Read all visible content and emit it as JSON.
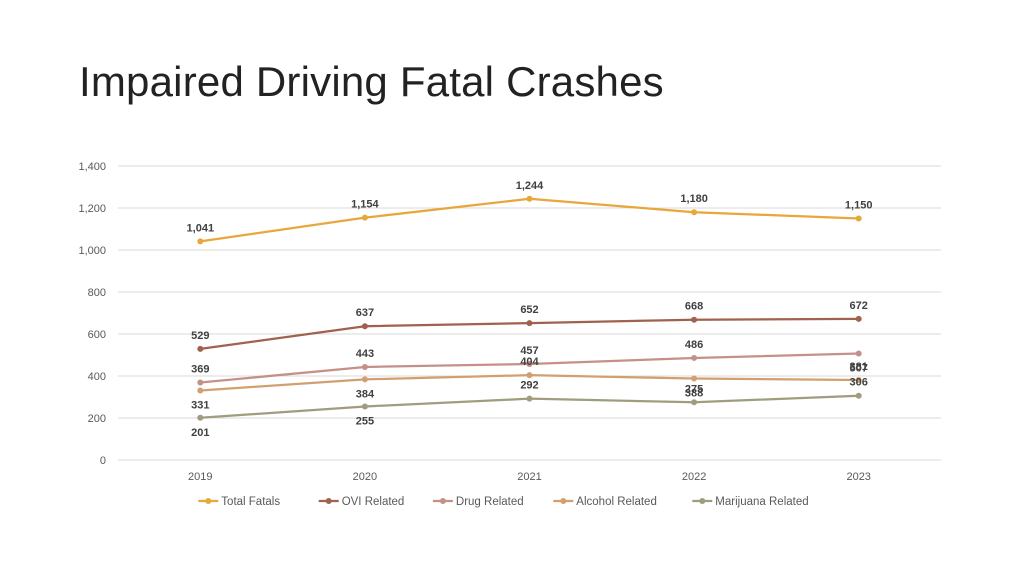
{
  "title": "Impaired Driving Fatal Crashes",
  "chart_data": {
    "type": "line",
    "title": "Impaired Driving Fatal Crashes",
    "x": [
      "2019",
      "2020",
      "2021",
      "2022",
      "2023"
    ],
    "ylim": [
      0,
      1400
    ],
    "yticks": [
      0,
      200,
      400,
      600,
      800,
      1000,
      1200,
      1400
    ],
    "ytick_labels": [
      "0",
      "200",
      "400",
      "600",
      "800",
      "1,000",
      "1,200",
      "1,400"
    ],
    "grid": true,
    "legend_position": "bottom",
    "series": [
      {
        "name": "Total Fatals",
        "color": "#E7A73A",
        "values": [
          1041,
          1154,
          1244,
          1180,
          1150
        ],
        "labels": [
          "1,041",
          "1,154",
          "1,244",
          "1,180",
          "1,150"
        ]
      },
      {
        "name": "OVI Related",
        "color": "#A0614D",
        "values": [
          529,
          637,
          652,
          668,
          672
        ],
        "labels": [
          "529",
          "637",
          "652",
          "668",
          "672"
        ]
      },
      {
        "name": "Drug Related",
        "color": "#C49188",
        "values": [
          369,
          443,
          457,
          486,
          507
        ],
        "labels": [
          "369",
          "443",
          "457",
          "486",
          "507"
        ]
      },
      {
        "name": "Alcohol Related",
        "color": "#D2A070",
        "values": [
          331,
          384,
          404,
          388,
          381
        ],
        "labels": [
          "331",
          "384",
          "404",
          "388",
          "381"
        ]
      },
      {
        "name": "Marijuana Related",
        "color": "#A09C7E",
        "values": [
          201,
          255,
          292,
          275,
          306
        ],
        "labels": [
          "201",
          "255",
          "292",
          "275",
          "306"
        ]
      }
    ]
  }
}
